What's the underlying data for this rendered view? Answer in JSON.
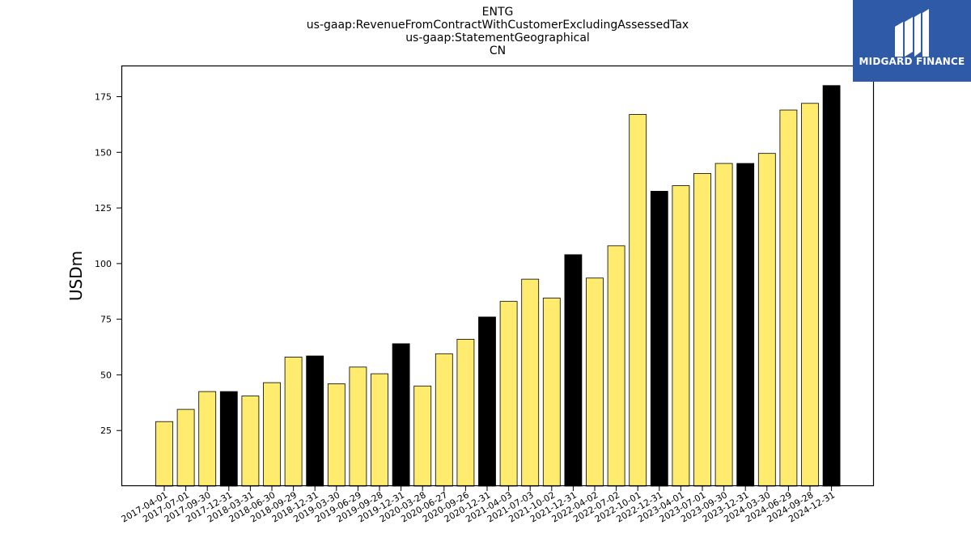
{
  "chart_data": {
    "type": "bar",
    "title_lines": [
      "ENTG",
      "us-gaap:RevenueFromContractWithCustomerExcludingAssessedTax",
      "us-gaap:StatementGeographical",
      "CN"
    ],
    "xlabel": "",
    "ylabel": "USDm",
    "ylim": [
      0,
      189
    ],
    "yticks": [
      25,
      50,
      75,
      100,
      125,
      150,
      175
    ],
    "grid": false,
    "legend": "none",
    "categories": [
      "2017-04-01",
      "2017-07-01",
      "2017-09-30",
      "2017-12-31",
      "2018-03-31",
      "2018-06-30",
      "2018-09-29",
      "2018-12-31",
      "2019-03-30",
      "2019-06-29",
      "2019-09-28",
      "2019-12-31",
      "2020-03-28",
      "2020-06-27",
      "2020-09-26",
      "2020-12-31",
      "2021-04-03",
      "2021-07-03",
      "2021-10-02",
      "2021-12-31",
      "2022-04-02",
      "2022-07-02",
      "2022-10-01",
      "2022-12-31",
      "2023-04-01",
      "2023-07-01",
      "2023-09-30",
      "2023-12-31",
      "2024-03-30",
      "2024-06-29",
      "2024-09-28",
      "2024-12-31"
    ],
    "values": [
      29,
      34.5,
      42.5,
      42.5,
      40.5,
      46.5,
      58,
      58.5,
      46,
      53.5,
      50.5,
      64,
      45,
      59.5,
      66,
      76,
      83,
      93,
      84.5,
      104,
      93.5,
      108,
      167,
      132.5,
      135,
      140.5,
      145,
      145,
      149.5,
      169,
      172,
      180
    ],
    "year_end": [
      false,
      false,
      false,
      true,
      false,
      false,
      false,
      true,
      false,
      false,
      false,
      true,
      false,
      false,
      false,
      true,
      false,
      false,
      false,
      true,
      false,
      false,
      false,
      true,
      false,
      false,
      false,
      true,
      false,
      false,
      false,
      true
    ],
    "colors": {
      "quarter": "#ffec6e",
      "year_end": "#000000",
      "edge": "#000000"
    }
  },
  "logo": {
    "text": "MIDGARD FINANCE",
    "icon": "midgard-m-logo-icon",
    "bg": "#2e5aa8"
  }
}
